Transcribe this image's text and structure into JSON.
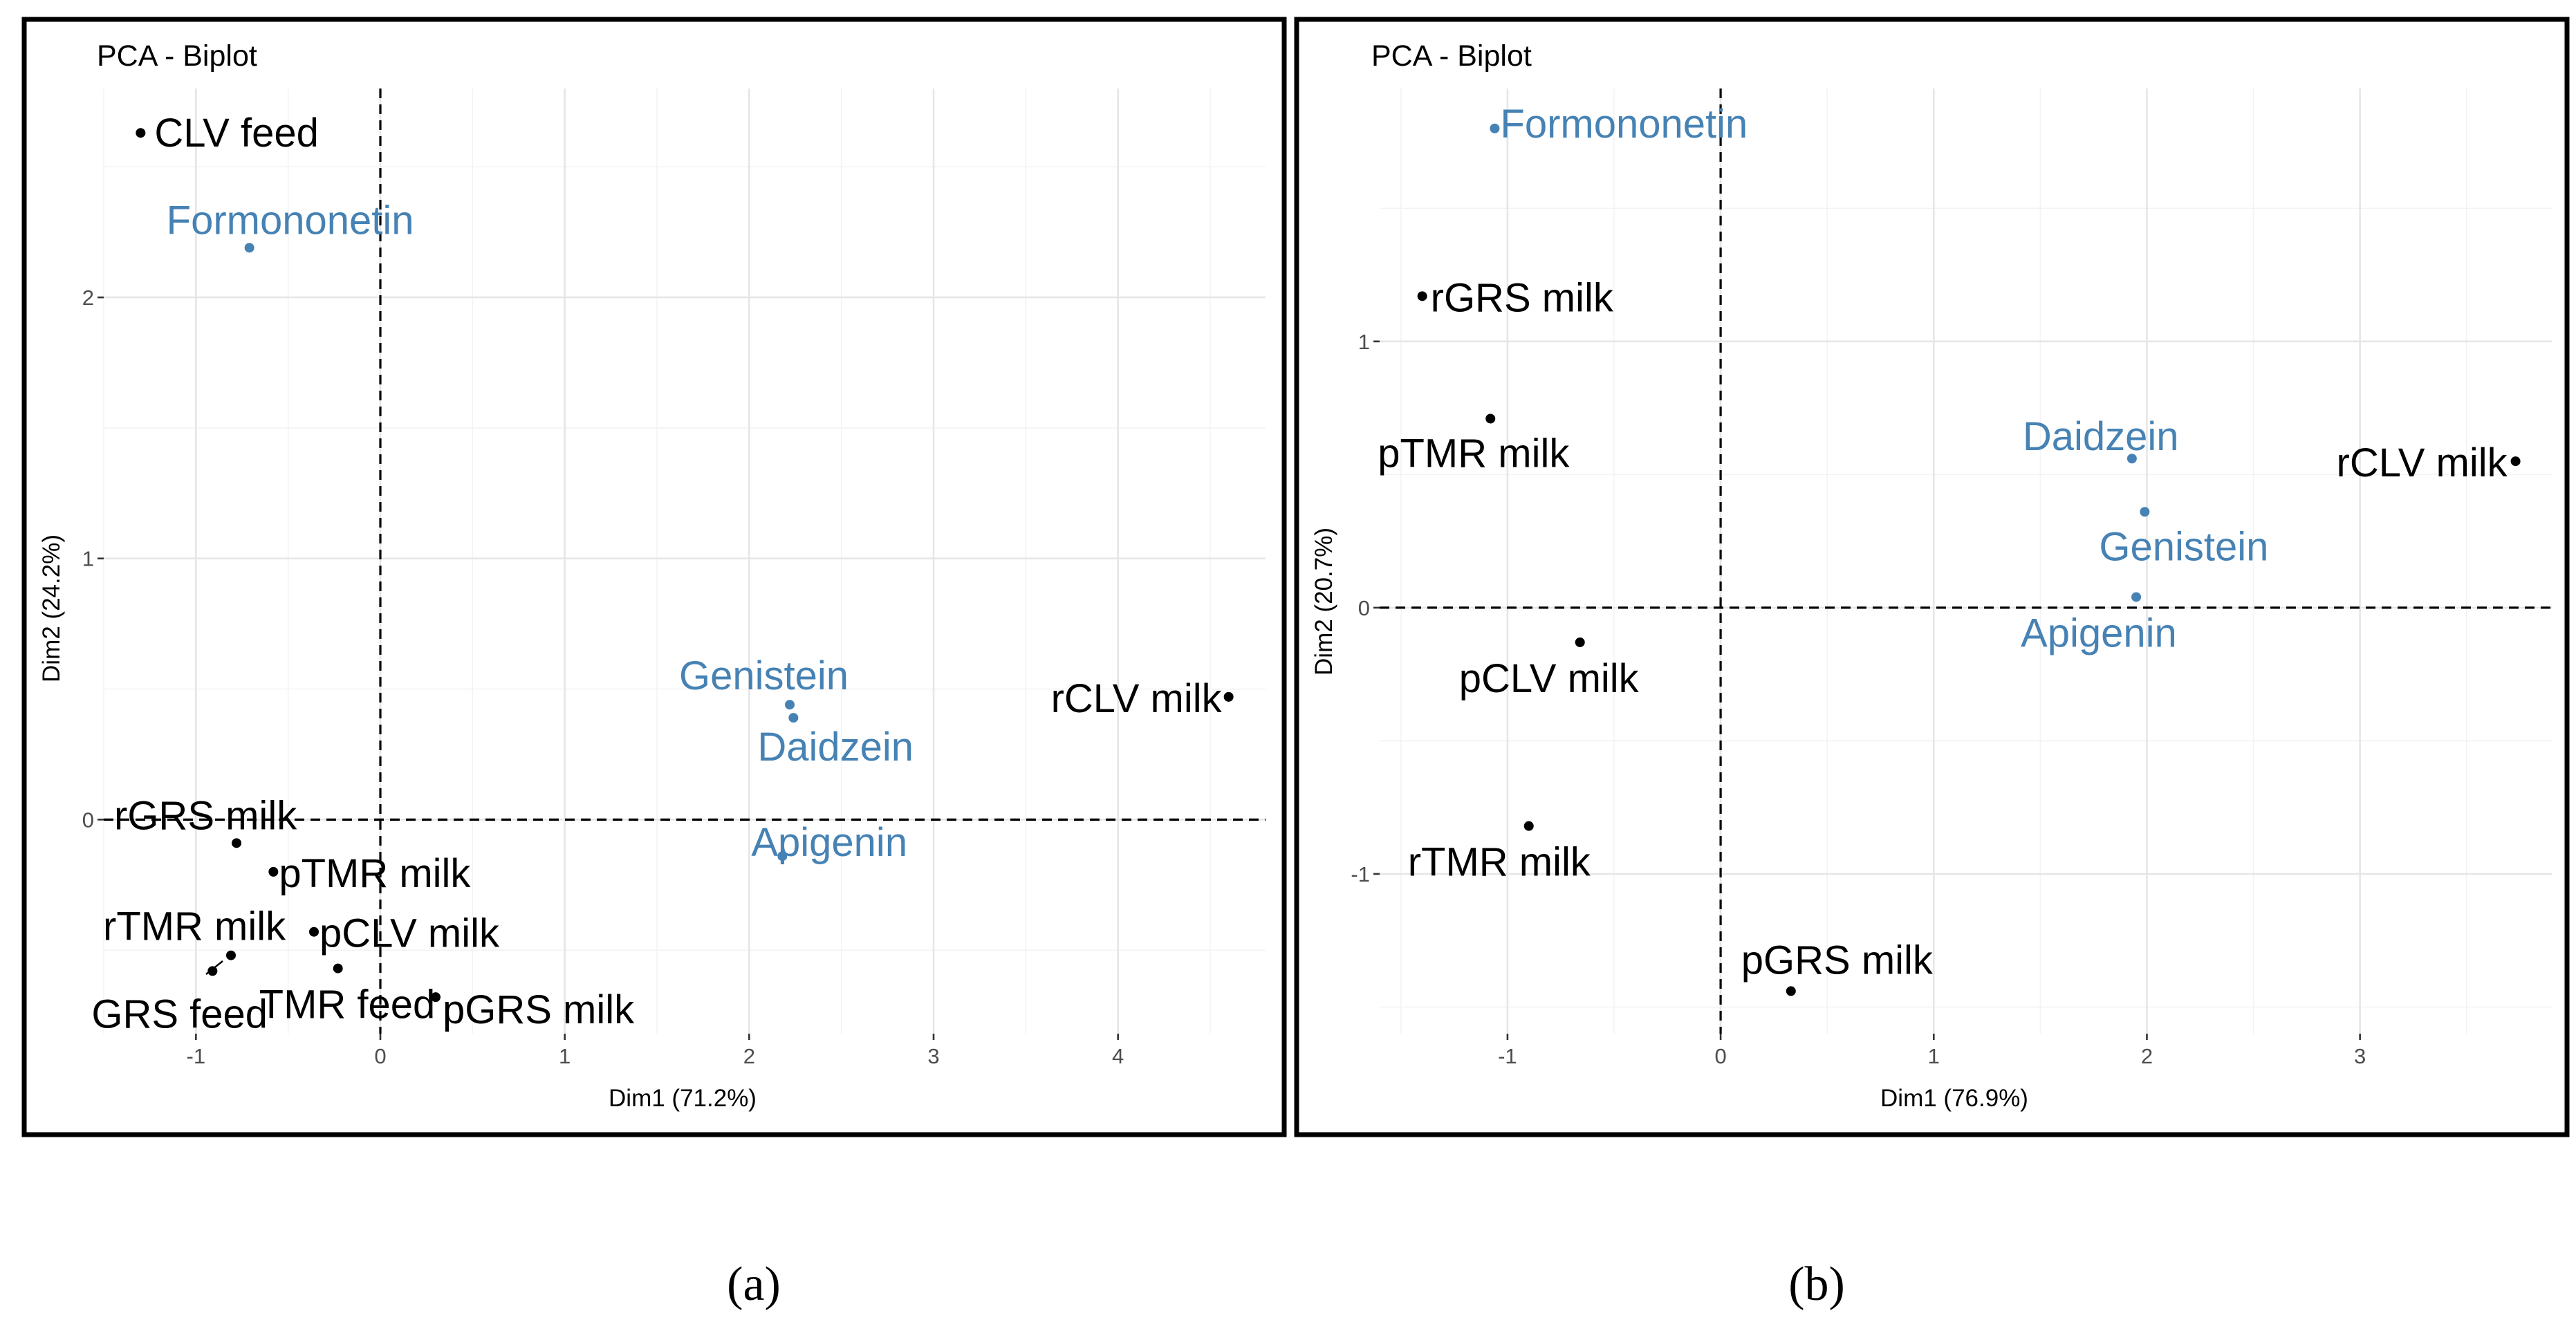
{
  "colors": {
    "individuals": "#000000",
    "variables": "#4682b4"
  },
  "chart_data": [
    {
      "type": "scatter",
      "panel_label": "(a)",
      "title": "PCA - Biplot",
      "xlabel": "Dim1 (71.2%)",
      "ylabel": "Dim2 (24.2%)",
      "xlim": [
        -1.5,
        4.8
      ],
      "ylim": [
        -0.82,
        2.8
      ],
      "xticks": [
        -1,
        0,
        1,
        2,
        3,
        4
      ],
      "yticks": [
        0,
        1,
        2
      ],
      "grid": true,
      "series": [
        {
          "name": "individuals",
          "points": [
            {
              "label": "CLV feed",
              "x": -1.3,
              "y": 2.63
            },
            {
              "label": "rGRS milk",
              "x": -0.78,
              "y": -0.09
            },
            {
              "label": "pTMR milk",
              "x": -0.58,
              "y": -0.2
            },
            {
              "label": "rTMR milk",
              "x": -0.81,
              "y": -0.52
            },
            {
              "label": "pCLV milk",
              "x": -0.36,
              "y": -0.43
            },
            {
              "label": "GRS feed",
              "x": -0.91,
              "y": -0.58
            },
            {
              "label": "TMR feed",
              "x": -0.23,
              "y": -0.57
            },
            {
              "label": "pGRS milk",
              "x": 0.3,
              "y": -0.68
            },
            {
              "label": "rCLV milk",
              "x": 4.6,
              "y": 0.47
            }
          ]
        },
        {
          "name": "variables",
          "points": [
            {
              "label": "Formononetin",
              "x": -0.71,
              "y": 2.19
            },
            {
              "label": "Genistein",
              "x": 2.22,
              "y": 0.44
            },
            {
              "label": "Daidzein",
              "x": 2.24,
              "y": 0.39
            },
            {
              "label": "Apigenin",
              "x": 2.18,
              "y": -0.14
            }
          ]
        }
      ]
    },
    {
      "type": "scatter",
      "panel_label": "(b)",
      "title": "PCA - Biplot",
      "xlabel": "Dim1 (76.9%)",
      "ylabel": "Dim2 (20.7%)",
      "xlim": [
        -1.6,
        3.9
      ],
      "ylim": [
        -1.6,
        1.95
      ],
      "xticks": [
        -1,
        0,
        1,
        2,
        3
      ],
      "yticks": [
        -1,
        0,
        1
      ],
      "grid": true,
      "series": [
        {
          "name": "individuals",
          "points": [
            {
              "label": "rGRS milk",
              "x": -1.4,
              "y": 1.17
            },
            {
              "label": "pTMR milk",
              "x": -1.08,
              "y": 0.71
            },
            {
              "label": "pCLV milk",
              "x": -0.66,
              "y": -0.13
            },
            {
              "label": "rTMR milk",
              "x": -0.9,
              "y": -0.82
            },
            {
              "label": "pGRS milk",
              "x": 0.33,
              "y": -1.44
            },
            {
              "label": "rCLV milk",
              "x": 3.73,
              "y": 0.55
            }
          ]
        },
        {
          "name": "variables",
          "points": [
            {
              "label": "Formononetin",
              "x": -1.06,
              "y": 1.8
            },
            {
              "label": "Daidzein",
              "x": 1.93,
              "y": 0.56
            },
            {
              "label": "Genistein",
              "x": 1.99,
              "y": 0.36
            },
            {
              "label": "Apigenin",
              "x": 1.95,
              "y": 0.04
            }
          ]
        }
      ]
    }
  ]
}
